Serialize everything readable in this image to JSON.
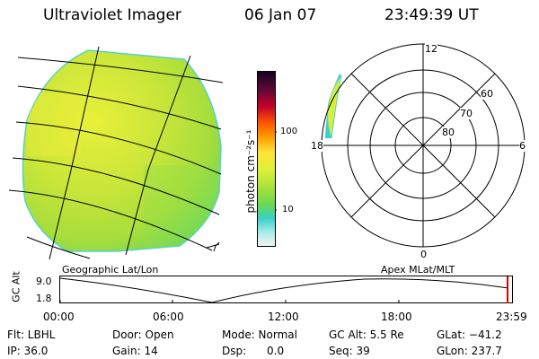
{
  "header": {
    "instrument": "Ultraviolet Imager",
    "date": "06 Jan 07",
    "time": "23:49:39 UT"
  },
  "colorbar": {
    "unit_label": "photon cm⁻²s⁻¹",
    "ticks": [
      "100",
      "10"
    ]
  },
  "polar": {
    "mlt_labels": {
      "top": "12",
      "left": "18",
      "right": "6",
      "bottom": "0"
    },
    "lat_labels": [
      "60",
      "70",
      "80"
    ]
  },
  "projection_labels": {
    "left": "Geographic Lat/Lon",
    "right": "Apex MLat/MLT"
  },
  "orbit_plot": {
    "ylabel": "GC Alt",
    "yticks": [
      "9.0",
      "1.8"
    ],
    "xticks": [
      "00:00",
      "06:00",
      "12:00",
      "18:00",
      "23:59"
    ]
  },
  "status": {
    "row1": {
      "filter": "Flt: LBHL",
      "door": "Door: Open",
      "mode": "Mode: Normal",
      "gc_alt": "GC Alt: 5.5 Re",
      "glat": "GLat: −41.2"
    },
    "row2": {
      "ip": "IP: 36.0",
      "gain": "Gain: 14",
      "dsp": "Dsp:      0.0",
      "seq": "Seq: 39",
      "glon": "GLon: 237.7"
    }
  }
}
